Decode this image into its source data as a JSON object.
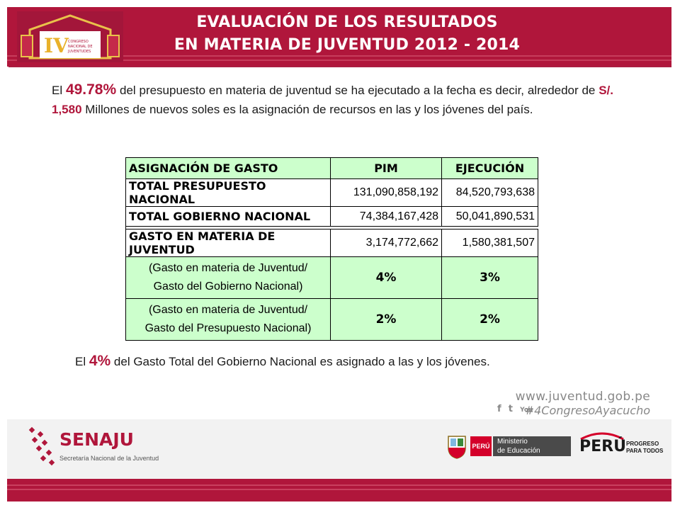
{
  "header": {
    "title_line1": "EVALUACIÓN DE LOS RESULTADOS",
    "title_line2": "EN MATERIA DE JUVENTUD 2012 - 2014",
    "logo": {
      "icon": "congreso-logo",
      "text": "CONGRESO NACIONAL DE JUVENTUDES",
      "colors": [
        "#b0163b",
        "#e9b12a"
      ]
    }
  },
  "intro": {
    "p1": "El ",
    "pct": "49.78%",
    "p2": " del presupuesto en materia de juventud se ha ejecutado a la fecha es decir, alrededor de ",
    "amount": "S/. 1,580",
    "p3": " Millones de  nuevos soles es la asignación de recursos en las y los jóvenes del país."
  },
  "table": {
    "headers": [
      "ASIGNACIÓN DE GASTO",
      "PIM",
      "EJECUCIÓN"
    ],
    "rows": [
      {
        "label": "TOTAL PRESUPUESTO NACIONAL",
        "pim": "131,090,858,192",
        "ejecucion": "84,520,793,638"
      },
      {
        "label": "TOTAL GOBIERNO NACIONAL",
        "pim": "74,384,167,428",
        "ejecucion": "50,041,890,531"
      },
      {
        "label": "GASTO EN MATERIA DE JUVENTUD",
        "pim": "3,174,772,662",
        "ejecucion": "1,580,381,507"
      }
    ],
    "ratios": [
      {
        "line1": "(Gasto en materia de Juventud/",
        "line2": "Gasto del Gobierno Nacional)",
        "pim": "4%",
        "ejecucion": "3%"
      },
      {
        "line1": "(Gasto en materia de Juventud/",
        "line2": "Gasto del Presupuesto Nacional)",
        "pim": "2%",
        "ejecucion": "2%"
      }
    ],
    "colors": {
      "highlight": "#ccffcc",
      "border": "#000000"
    }
  },
  "closing": {
    "p1": "El ",
    "pct": "4%",
    "p2": " del Gasto Total del Gobierno Nacional es asignado a las y los jóvenes."
  },
  "web": {
    "url": "www.juventud.gob.pe",
    "social_icons": [
      "facebook-icon",
      "twitter-icon",
      "youtube-icon"
    ],
    "social_glyphs": [
      "f",
      "t",
      "You"
    ],
    "hashtag": "#4CongresoAyacucho"
  },
  "footer": {
    "senaju_name": "SENAJU",
    "senaju_sub": "Secretaría Nacional de la Juventud",
    "peru_badge": "PERÚ",
    "ministry_line1": "Ministerio",
    "ministry_line2": "de Educación",
    "peru_brand": "PERÚ",
    "progreso_line1": "PROGRESO",
    "progreso_line2": "PARA TODOS"
  },
  "colors": {
    "brand": "#b0163b",
    "text": "#1a1a1a",
    "muted": "#888888"
  }
}
